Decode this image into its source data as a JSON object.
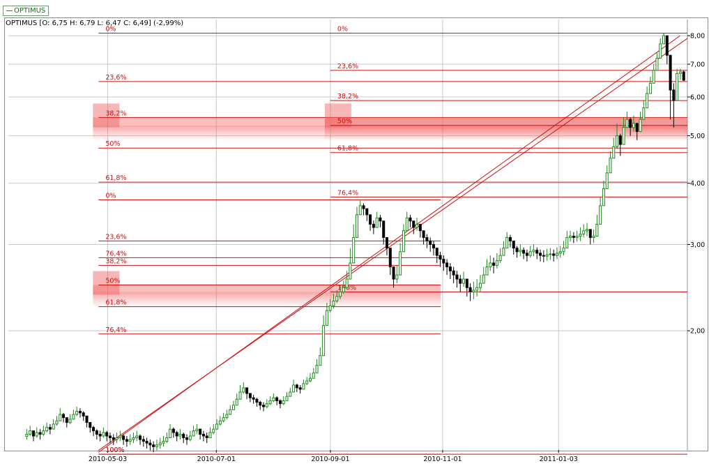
{
  "legend": {
    "label": "OPTIMUS",
    "color": "#1a8a1a"
  },
  "header": {
    "text": "OPTIMUS [O: 6,75  H: 6,79  L: 6,47  C: 6,49] (-2,99%)"
  },
  "colors": {
    "up_candle": "#1a8a1a",
    "down_candle": "#000000",
    "fibonacci": "#cc1111",
    "fib_zone": "#f06060",
    "grid": "#c8c8c8",
    "frame": "#8c8c8c"
  },
  "chart_data": {
    "type": "candlestick",
    "title": "OPTIMUS",
    "y_scale": "log",
    "y_ticks": [
      {
        "value": 2.0,
        "label": "2,00"
      },
      {
        "value": 3.0,
        "label": "3,00"
      },
      {
        "value": 4.0,
        "label": "4,00"
      },
      {
        "value": 5.0,
        "label": "5,00"
      },
      {
        "value": 6.0,
        "label": "6,00"
      },
      {
        "value": 7.0,
        "label": "7,00"
      },
      {
        "value": 8.0,
        "label": "8,00"
      }
    ],
    "x_ticks": [
      {
        "date": "2010-05-03",
        "label": "2010-05-03"
      },
      {
        "date": "2010-07-01",
        "label": "2010-07-01"
      },
      {
        "date": "2010-09-01",
        "label": "2010-09-01"
      },
      {
        "date": "2010-11-01",
        "label": "2010-11-01"
      },
      {
        "date": "2011-01-03",
        "label": "2011-01-03"
      }
    ],
    "x_range": [
      "2010-03-10",
      "2011-03-14"
    ],
    "y_range": [
      1.15,
      8.3
    ],
    "grid": true,
    "last_bar": {
      "open": 6.75,
      "high": 6.79,
      "low": 6.47,
      "close": 6.49,
      "change": "-2,99%"
    },
    "series": {
      "closes": [
        1.23,
        1.25,
        1.22,
        1.24,
        1.23,
        1.25,
        1.27,
        1.26,
        1.29,
        1.31,
        1.35,
        1.33,
        1.3,
        1.32,
        1.35,
        1.37,
        1.36,
        1.34,
        1.3,
        1.27,
        1.25,
        1.23,
        1.22,
        1.24,
        1.22,
        1.21,
        1.2,
        1.21,
        1.22,
        1.2,
        1.19,
        1.2,
        1.21,
        1.22,
        1.2,
        1.19,
        1.18,
        1.17,
        1.16,
        1.17,
        1.18,
        1.19,
        1.21,
        1.26,
        1.24,
        1.22,
        1.23,
        1.21,
        1.2,
        1.22,
        1.25,
        1.26,
        1.23,
        1.22,
        1.21,
        1.24,
        1.26,
        1.29,
        1.31,
        1.33,
        1.35,
        1.38,
        1.41,
        1.45,
        1.5,
        1.53,
        1.49,
        1.46,
        1.45,
        1.43,
        1.41,
        1.4,
        1.42,
        1.44,
        1.46,
        1.44,
        1.42,
        1.44,
        1.47,
        1.5,
        1.55,
        1.53,
        1.52,
        1.56,
        1.58,
        1.6,
        1.64,
        1.7,
        1.78,
        2.05,
        2.2,
        2.25,
        2.3,
        2.35,
        2.4,
        2.45,
        2.55,
        2.75,
        3.1,
        3.45,
        3.6,
        3.55,
        3.45,
        3.3,
        3.25,
        3.4,
        3.35,
        3.1,
        2.95,
        2.7,
        2.55,
        2.6,
        2.9,
        3.2,
        3.4,
        3.35,
        3.25,
        3.3,
        3.2,
        3.1,
        3.05,
        3.0,
        2.95,
        2.85,
        2.8,
        2.75,
        2.7,
        2.65,
        2.6,
        2.55,
        2.5,
        2.55,
        2.45,
        2.4,
        2.42,
        2.45,
        2.5,
        2.6,
        2.7,
        2.75,
        2.72,
        2.78,
        2.85,
        2.95,
        3.1,
        3.05,
        2.95,
        2.9,
        2.92,
        2.88,
        2.85,
        2.9,
        2.92,
        2.88,
        2.85,
        2.84,
        2.86,
        2.87,
        2.85,
        2.88,
        2.9,
        2.95,
        3.1,
        3.12,
        3.1,
        3.12,
        3.15,
        3.2,
        3.22,
        3.1,
        3.12,
        3.3,
        3.6,
        3.9,
        4.2,
        4.5,
        4.75,
        5.0,
        4.8,
        5.2,
        5.4,
        5.2,
        5.3,
        5.1,
        5.4,
        5.7,
        6.1,
        6.4,
        6.8,
        7.2,
        7.7,
        8.0,
        7.3,
        6.2,
        5.9,
        6.7,
        6.75,
        6.49
      ],
      "highs": [
        1.26,
        1.28,
        1.25,
        1.27,
        1.26,
        1.28,
        1.3,
        1.29,
        1.32,
        1.34,
        1.39,
        1.36,
        1.33,
        1.35,
        1.38,
        1.4,
        1.39,
        1.37,
        1.33,
        1.3,
        1.28,
        1.26,
        1.25,
        1.27,
        1.25,
        1.24,
        1.23,
        1.24,
        1.25,
        1.23,
        1.22,
        1.23,
        1.24,
        1.25,
        1.23,
        1.22,
        1.21,
        1.2,
        1.19,
        1.2,
        1.21,
        1.22,
        1.24,
        1.29,
        1.27,
        1.25,
        1.26,
        1.24,
        1.23,
        1.25,
        1.28,
        1.29,
        1.26,
        1.25,
        1.24,
        1.27,
        1.29,
        1.32,
        1.34,
        1.36,
        1.38,
        1.41,
        1.44,
        1.49,
        1.55,
        1.57,
        1.53,
        1.49,
        1.48,
        1.46,
        1.44,
        1.43,
        1.45,
        1.47,
        1.49,
        1.47,
        1.45,
        1.47,
        1.5,
        1.53,
        1.59,
        1.56,
        1.55,
        1.59,
        1.61,
        1.64,
        1.68,
        1.75,
        1.85,
        2.15,
        2.28,
        2.32,
        2.38,
        2.42,
        2.48,
        2.53,
        2.65,
        2.95,
        3.3,
        3.58,
        3.7,
        3.64,
        3.55,
        3.4,
        3.36,
        3.5,
        3.45,
        3.22,
        3.05,
        2.82,
        2.65,
        2.72,
        3.02,
        3.3,
        3.5,
        3.45,
        3.35,
        3.4,
        3.3,
        3.2,
        3.15,
        3.1,
        3.05,
        2.95,
        2.9,
        2.85,
        2.8,
        2.75,
        2.7,
        2.65,
        2.6,
        2.64,
        2.55,
        2.5,
        2.52,
        2.55,
        2.6,
        2.7,
        2.8,
        2.85,
        2.82,
        2.88,
        2.95,
        3.05,
        3.18,
        3.14,
        3.04,
        2.98,
        3.0,
        2.96,
        2.93,
        2.98,
        3.0,
        2.96,
        2.93,
        2.92,
        2.94,
        2.95,
        2.93,
        2.96,
        2.98,
        3.05,
        3.2,
        3.2,
        3.18,
        3.2,
        3.25,
        3.3,
        3.32,
        3.2,
        3.22,
        3.45,
        3.75,
        4.05,
        4.35,
        4.65,
        4.95,
        5.3,
        5.05,
        5.45,
        5.6,
        5.45,
        5.5,
        5.3,
        5.6,
        5.9,
        6.3,
        6.6,
        7.0,
        7.4,
        7.9,
        8.1,
        7.9,
        7.1,
        6.4,
        6.85,
        6.85,
        6.79
      ],
      "lows": [
        1.2,
        1.22,
        1.19,
        1.21,
        1.2,
        1.22,
        1.24,
        1.23,
        1.26,
        1.28,
        1.31,
        1.3,
        1.27,
        1.29,
        1.32,
        1.34,
        1.33,
        1.31,
        1.27,
        1.24,
        1.22,
        1.2,
        1.19,
        1.21,
        1.19,
        1.18,
        1.17,
        1.18,
        1.19,
        1.17,
        1.16,
        1.17,
        1.18,
        1.19,
        1.17,
        1.16,
        1.15,
        1.14,
        1.13,
        1.14,
        1.15,
        1.16,
        1.18,
        1.22,
        1.21,
        1.19,
        1.2,
        1.18,
        1.17,
        1.19,
        1.22,
        1.23,
        1.2,
        1.19,
        1.18,
        1.21,
        1.23,
        1.26,
        1.28,
        1.3,
        1.32,
        1.35,
        1.38,
        1.41,
        1.45,
        1.49,
        1.45,
        1.43,
        1.42,
        1.4,
        1.38,
        1.37,
        1.39,
        1.41,
        1.43,
        1.41,
        1.39,
        1.41,
        1.44,
        1.47,
        1.51,
        1.5,
        1.49,
        1.53,
        1.55,
        1.57,
        1.6,
        1.66,
        1.72,
        1.95,
        2.12,
        2.18,
        2.22,
        2.28,
        2.32,
        2.38,
        2.45,
        2.6,
        2.9,
        3.3,
        3.48,
        3.44,
        3.35,
        3.2,
        3.15,
        3.3,
        3.25,
        3.0,
        2.85,
        2.6,
        2.45,
        2.5,
        2.8,
        3.1,
        3.3,
        3.25,
        3.15,
        3.2,
        3.1,
        3.0,
        2.95,
        2.9,
        2.85,
        2.75,
        2.7,
        2.65,
        2.6,
        2.55,
        2.5,
        2.45,
        2.4,
        2.46,
        2.35,
        2.3,
        2.32,
        2.35,
        2.4,
        2.5,
        2.6,
        2.65,
        2.62,
        2.68,
        2.75,
        2.85,
        3.0,
        2.96,
        2.86,
        2.82,
        2.84,
        2.8,
        2.77,
        2.82,
        2.84,
        2.8,
        2.77,
        2.76,
        2.78,
        2.79,
        2.77,
        2.8,
        2.82,
        2.85,
        3.0,
        3.04,
        3.02,
        3.04,
        3.05,
        3.1,
        3.12,
        3.0,
        3.02,
        3.15,
        3.45,
        3.75,
        4.05,
        4.35,
        4.55,
        4.7,
        4.55,
        4.95,
        5.2,
        5.0,
        5.1,
        4.9,
        5.2,
        5.5,
        5.9,
        6.2,
        6.6,
        7.0,
        7.5,
        7.8,
        7.0,
        5.4,
        5.2,
        6.3,
        6.5,
        6.47
      ]
    },
    "fib_sets": [
      {
        "from": "2010-04-28",
        "to": "2010-10-31",
        "levels": [
          {
            "label": "0%",
            "value": 3.7
          },
          {
            "label": "23,6%",
            "value": 3.05
          },
          {
            "label": "38,2%",
            "value": 2.72
          },
          {
            "label": "50%",
            "value": 2.48
          },
          {
            "label": "61,8%",
            "value": 2.24
          },
          {
            "label": "76,4%",
            "value": 1.97
          },
          {
            "label": "100%",
            "value": 1.12
          }
        ],
        "extra_levels": [
          {
            "label": "76,4%",
            "value": 2.82
          }
        ],
        "zone": {
          "label": "50%",
          "from": 2.4,
          "to": 2.48
        }
      },
      {
        "from": "2010-04-28",
        "to": "2011-03-14",
        "levels": [
          {
            "label": "0%",
            "value": 8.1
          },
          {
            "label": "23,6%",
            "value": 6.45
          },
          {
            "label": "38,2%",
            "value": 5.45
          },
          {
            "label": "50%",
            "value": 4.72
          },
          {
            "label": "61,8%",
            "value": 4.02
          },
          {
            "label": "100%",
            "value": 1.12
          }
        ],
        "zone": {
          "label": "38,2%",
          "from": 5.25,
          "to": 5.45
        }
      },
      {
        "from": "2010-09-01",
        "to": "2011-03-14",
        "levels": [
          {
            "label": "0%",
            "value": 8.1
          },
          {
            "label": "23,6%",
            "value": 6.8
          },
          {
            "label": "38,2%",
            "value": 5.9
          },
          {
            "label": "50%",
            "value": 5.25
          },
          {
            "label": "61,8%",
            "value": 4.62
          },
          {
            "label": "76,4%",
            "value": 3.75
          },
          {
            "label": "100%",
            "value": 2.4
          }
        ],
        "zone": {
          "label": "50%",
          "from": 5.25,
          "to": 5.45
        }
      }
    ],
    "trend_lines": [
      {
        "x1": "2010-04-28",
        "y1": 1.13,
        "x2": "2011-03-10",
        "y2": 8.0
      },
      {
        "x1": "2010-04-28",
        "y1": 1.14,
        "x2": "2011-03-14",
        "y2": 7.9
      }
    ]
  }
}
